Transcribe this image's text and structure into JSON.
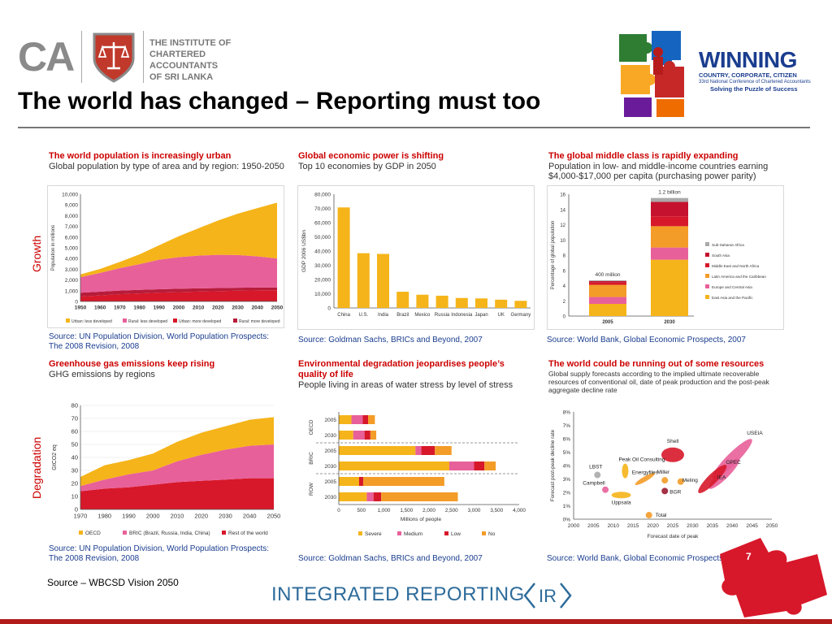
{
  "header": {
    "ca_letters": "CA",
    "institute_name": [
      "THE INSTITUTE OF",
      "CHARTERED ACCOUNTANTS",
      "OF SRI LANKA"
    ],
    "title": "The world has changed – Reporting must too",
    "winning_logo": {
      "title": "WINNING",
      "line1": "COUNTRY, CORPORATE, CITIZEN",
      "line2": "33rd National Conference of Chartered Accountants",
      "tagline": "Solving the Puzzle of Success"
    }
  },
  "side_labels": {
    "growth": "Growth",
    "degradation": "Degradation"
  },
  "panels": {
    "population": {
      "title": "The world population is increasingly urban",
      "subtitle": "Global population by type of area and by region: 1950-2050",
      "source": "Source: UN Population Division, World Population Prospects: The 2008 Revision, 2008"
    },
    "economic": {
      "title": "Global economic power is shifting",
      "subtitle": "Top 10 economies by GDP in 2050",
      "source": "Source: Goldman Sachs, BRICs and Beyond, 2007"
    },
    "middle_class": {
      "title": "The global middle class is rapidly expanding",
      "subtitle": "Population in low- and middle-income countries earning $4,000-$17,000 per capita (purchasing power parity)",
      "source": "Source: World Bank, Global Economic Prospects, 2007"
    },
    "ghg": {
      "title": "Greenhouse gas emissions keep rising",
      "subtitle": "GHG emissions by regions",
      "source": "Source: UN Population Division, World Population Prospects: The 2008 Revision, 2008"
    },
    "water": {
      "title": "Environmental degradation jeopardises people’s quality of life",
      "subtitle": "People living in areas of water stress by level of stress",
      "source": "Source: Goldman Sachs, BRICs and Beyond, 2007"
    },
    "resources": {
      "title": "The world could be running out of some resources",
      "subtitle": "Global supply forecasts according to the implied ultimate recoverable resources of conventional oil, date of peak production and the post-peak aggregate decline rate",
      "source": "Source: World Bank, Global Economic Prospects, 2007"
    }
  },
  "colors": {
    "accent_red": "#cc0000",
    "source_blue": "#1a3d8f",
    "bar_orange": "#f5b41a",
    "pink": "#e8609a",
    "red": "#d7182a",
    "orange": "#f39c28"
  },
  "chart_data": [
    {
      "id": "population",
      "type": "area",
      "x": [
        1950,
        1960,
        1970,
        1980,
        1990,
        2000,
        2010,
        2020,
        2030,
        2040,
        2050
      ],
      "ylabel": "Population in millions",
      "ylim": [
        0,
        10000
      ],
      "yticks": [
        "0",
        "1,000",
        "2,000",
        "3,000",
        "4,000",
        "5,000",
        "6,000",
        "7,000",
        "8,000",
        "9,000",
        "10,000"
      ],
      "legend_position": "bottom",
      "series": [
        {
          "name": "Urban: more developed",
          "color": "#d7182a",
          "values": [
            450,
            560,
            670,
            750,
            820,
            870,
            920,
            960,
            1000,
            1030,
            1050
          ]
        },
        {
          "name": "Rural: more developed",
          "color": "#b71c3a",
          "values": [
            360,
            350,
            340,
            330,
            320,
            310,
            300,
            290,
            280,
            270,
            260
          ]
        },
        {
          "name": "Rural: less developed",
          "color": "#e8609a",
          "values": [
            1450,
            1750,
            2100,
            2400,
            2750,
            2950,
            3050,
            3100,
            3050,
            2900,
            2700
          ]
        },
        {
          "name": "Urban: less developed",
          "color": "#f5b41a",
          "values": [
            260,
            370,
            570,
            900,
            1350,
            1950,
            2550,
            3200,
            3850,
            4500,
            5200
          ]
        }
      ]
    },
    {
      "id": "economic",
      "type": "bar",
      "categories": [
        "China",
        "U.S.",
        "India",
        "Brazil",
        "Mexico",
        "Russia",
        "Indonesia",
        "Japan",
        "UK",
        "Germany"
      ],
      "values": [
        70700,
        38500,
        38000,
        11400,
        9300,
        8600,
        7000,
        6700,
        5800,
        5000
      ],
      "ylabel": "GDP 2006 US$bn",
      "ylim": [
        0,
        80000
      ],
      "yticks": [
        "0",
        "10,000",
        "20,000",
        "30,000",
        "40,000",
        "50,000",
        "60,000",
        "70,000",
        "80,000"
      ],
      "color": "#f5b41a"
    },
    {
      "id": "middle_class",
      "type": "bar",
      "stacked": true,
      "categories": [
        "2005",
        "2030"
      ],
      "ylabel": "Percentage of global population",
      "ylim": [
        0,
        16
      ],
      "yticks": [
        "0",
        "2",
        "4",
        "6",
        "8",
        "10",
        "12",
        "14",
        "16"
      ],
      "annotations": [
        "400 million",
        "1.2 billion"
      ],
      "legend_position": "right",
      "series": [
        {
          "name": "East Asia and the Pacific",
          "color": "#f5b41a",
          "values": [
            1.6,
            7.4
          ]
        },
        {
          "name": "Europe and Central Asia",
          "color": "#e8609a",
          "values": [
            0.9,
            1.6
          ]
        },
        {
          "name": "Latin America and the Caribbean",
          "color": "#f39c28",
          "values": [
            1.6,
            2.8
          ]
        },
        {
          "name": "Middle East and North Africa",
          "color": "#d7182a",
          "values": [
            0.3,
            1.3
          ]
        },
        {
          "name": "South Asia",
          "color": "#c4122f",
          "values": [
            0.2,
            1.9
          ]
        },
        {
          "name": "Sub-Saharan Africa",
          "color": "#aaaaaa",
          "values": [
            0.1,
            0.5
          ]
        }
      ]
    },
    {
      "id": "ghg",
      "type": "area",
      "x": [
        1970,
        1980,
        1990,
        2000,
        2010,
        2020,
        2030,
        2040,
        2050
      ],
      "ylabel": "GtCO2 eq",
      "ylim": [
        0,
        80
      ],
      "yticks": [
        "0",
        "10",
        "20",
        "30",
        "40",
        "50",
        "60",
        "70",
        "80"
      ],
      "legend_position": "bottom",
      "series": [
        {
          "name": "Rest of the world",
          "color": "#d7182a",
          "values": [
            14,
            16,
            17,
            19,
            21,
            22,
            23,
            24,
            24
          ]
        },
        {
          "name": "BRIC (Brazil, Russia, India, China)",
          "color": "#e8609a",
          "values": [
            4,
            7,
            10,
            11,
            16,
            20,
            23,
            25,
            26
          ]
        },
        {
          "name": "OECD",
          "color": "#f5b41a",
          "values": [
            7,
            11,
            11,
            13,
            15,
            17,
            18,
            20,
            21
          ]
        }
      ]
    },
    {
      "id": "water",
      "type": "bar",
      "orientation": "horizontal",
      "stacked": true,
      "groups": [
        "OECD",
        "BRIC",
        "ROW"
      ],
      "categories": [
        "2005",
        "2030",
        "2005",
        "2030",
        "2005",
        "2030"
      ],
      "xlabel": "Millions of people",
      "xlim": [
        0,
        4000
      ],
      "xticks": [
        "0",
        "500",
        "1,000",
        "1,500",
        "2,000",
        "2,500",
        "3,000",
        "3,500",
        "4,000"
      ],
      "legend_position": "bottom",
      "series": [
        {
          "name": "Severe",
          "color": "#f5b41a",
          "values": [
            280,
            320,
            1700,
            2450,
            450,
            620
          ]
        },
        {
          "name": "Medium",
          "color": "#e8609a",
          "values": [
            250,
            250,
            130,
            550,
            0,
            150
          ]
        },
        {
          "name": "Low",
          "color": "#d7182a",
          "values": [
            120,
            130,
            300,
            230,
            90,
            170
          ]
        },
        {
          "name": "No",
          "color": "#f39c28",
          "values": [
            150,
            130,
            370,
            250,
            1800,
            1700
          ]
        }
      ]
    },
    {
      "id": "resources",
      "type": "scatter",
      "xlabel": "Forecast date of peak",
      "ylabel": "Forecast post-peak decline rate",
      "xlim": [
        2000,
        2050
      ],
      "ylim": [
        0,
        8
      ],
      "xticks": [
        "2000",
        "2005",
        "2010",
        "2015",
        "2020",
        "2025",
        "2030",
        "2035",
        "2040",
        "2045",
        "2050"
      ],
      "yticks": [
        "0%",
        "1%",
        "2%",
        "3%",
        "4%",
        "5%",
        "6%",
        "7%",
        "8%"
      ],
      "points": [
        {
          "label": "Shell",
          "x": 2025,
          "y": 4.8,
          "color": "#d7182a"
        },
        {
          "label": "USEIA",
          "x": 2040,
          "y": 4.5,
          "color": "#e8609a"
        },
        {
          "label": "Peak Oil Consulting",
          "x": 2013,
          "y": 3.6,
          "color": "#f5b41a"
        },
        {
          "label": "LBST",
          "x": 2006,
          "y": 3.3,
          "color": "#aaaaaa"
        },
        {
          "label": "Energyfiles",
          "x": 2018,
          "y": 3.0,
          "color": "#f39c28"
        },
        {
          "label": "Miller",
          "x": 2023,
          "y": 2.9,
          "color": "#f39c28"
        },
        {
          "label": "Meling",
          "x": 2027,
          "y": 2.8,
          "color": "#f39c28"
        },
        {
          "label": "OPEC",
          "x": 2038,
          "y": 3.4,
          "color": "#e8609a"
        },
        {
          "label": "IEA",
          "x": 2035,
          "y": 3.0,
          "color": "#d7182a"
        },
        {
          "label": "Campbell",
          "x": 2008,
          "y": 2.2,
          "color": "#e8609a"
        },
        {
          "label": "BGR",
          "x": 2023,
          "y": 2.1,
          "color": "#9b1b30"
        },
        {
          "label": "Uppsala",
          "x": 2012,
          "y": 1.8,
          "color": "#f5b41a"
        },
        {
          "label": "Total",
          "x": 2019,
          "y": 0.3,
          "color": "#f39c28"
        }
      ]
    }
  ],
  "footer": {
    "source": "Source – WBCSD Vision 2050",
    "ir_text": "INTEGRATED REPORTING",
    "ir_badge": "IR",
    "page_number": "7"
  }
}
